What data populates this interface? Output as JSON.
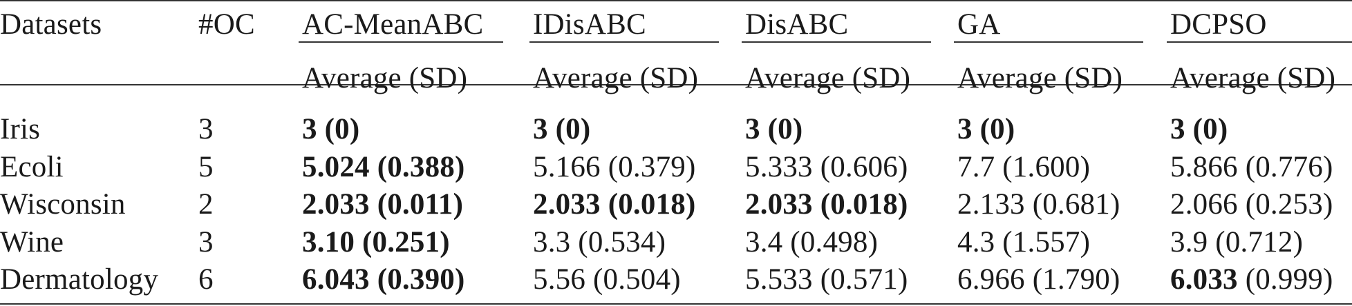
{
  "table": {
    "headers": {
      "datasets": "Datasets",
      "oc": "#OC",
      "methods": [
        "AC-MeanABC",
        "IDisABC",
        "DisABC",
        "GA",
        "DCPSO"
      ],
      "sub_header": "Average (SD)"
    },
    "rows": [
      {
        "dataset": "Iris",
        "oc": "3",
        "cells": [
          {
            "text": "3 (0)",
            "bold": true
          },
          {
            "text": "3 (0)",
            "bold": true
          },
          {
            "text": "3 (0)",
            "bold": true
          },
          {
            "text": "3 (0)",
            "bold": true
          },
          {
            "text": "3 (0)",
            "bold": true
          }
        ]
      },
      {
        "dataset": "Ecoli",
        "oc": "5",
        "cells": [
          {
            "text": "5.024 (0.388)",
            "bold": true
          },
          {
            "text": "5.166 (0.379)",
            "bold": false
          },
          {
            "text": "5.333 (0.606)",
            "bold": false
          },
          {
            "text": "7.7 (1.600)",
            "bold": false
          },
          {
            "text": "5.866 (0.776)",
            "bold": false
          }
        ]
      },
      {
        "dataset": "Wisconsin",
        "oc": "2",
        "cells": [
          {
            "text": "2.033 (0.011)",
            "bold": true
          },
          {
            "text": "2.033 (0.018)",
            "bold": true
          },
          {
            "text": "2.033 (0.018)",
            "bold": true
          },
          {
            "text": "2.133 (0.681)",
            "bold": false
          },
          {
            "text": "2.066 (0.253)",
            "bold": false
          }
        ]
      },
      {
        "dataset": "Wine",
        "oc": "3",
        "cells": [
          {
            "text": "3.10 (0.251)",
            "bold": true
          },
          {
            "text": "3.3 (0.534)",
            "bold": false
          },
          {
            "text": "3.4 (0.498)",
            "bold": false
          },
          {
            "text": "4.3 (1.557)",
            "bold": false
          },
          {
            "text": "3.9 (0.712)",
            "bold": false
          }
        ]
      },
      {
        "dataset": "Dermatology",
        "oc": "6",
        "cells": [
          {
            "text": "6.043 (0.390)",
            "bold": true
          },
          {
            "text": "5.56 (0.504)",
            "bold": false
          },
          {
            "text": "5.533 (0.571)",
            "bold": false
          },
          {
            "text": "6.966 (1.790)",
            "bold": false
          },
          {
            "parts": [
              {
                "text": "6.033",
                "bold": true
              },
              {
                "text": " (0.999)",
                "bold": false
              }
            ]
          }
        ]
      }
    ]
  }
}
